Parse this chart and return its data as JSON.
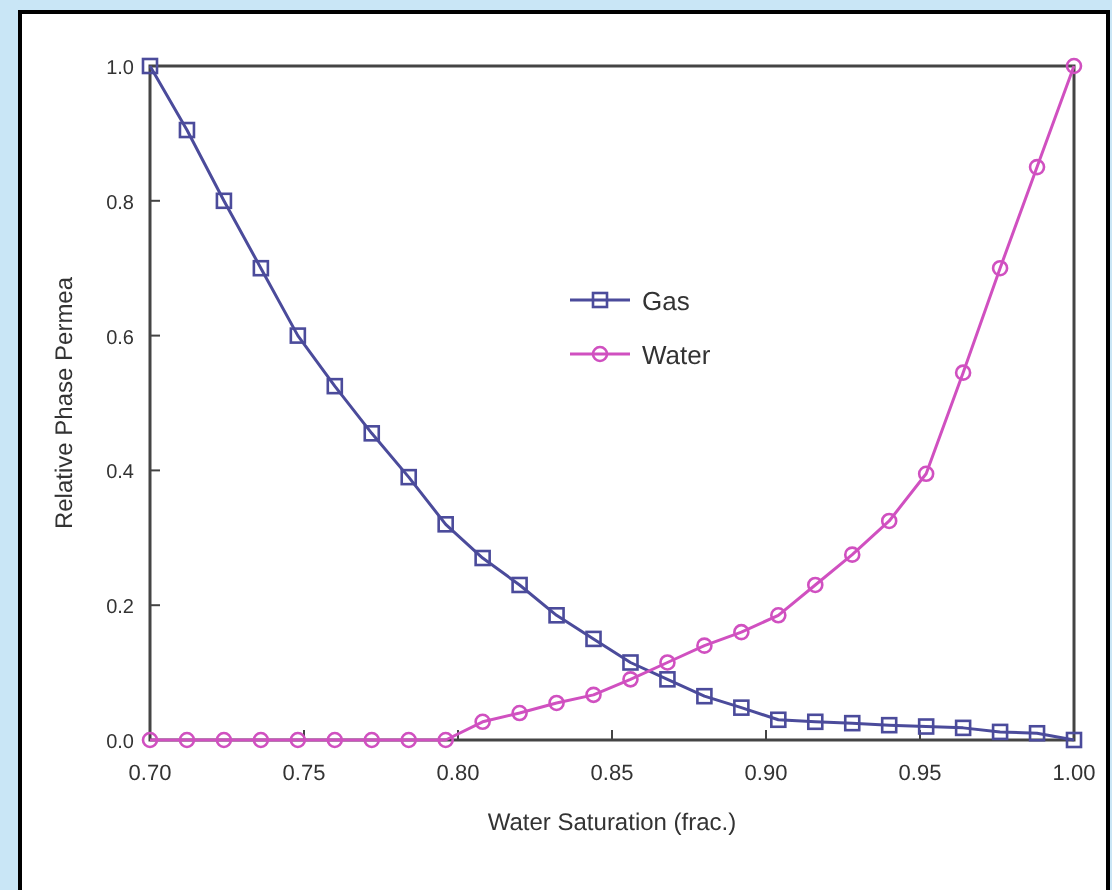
{
  "chart_data": {
    "type": "line",
    "xlabel": "Water Saturation (frac.)",
    "ylabel": "Relative Phase Permea",
    "x": [
      0.7,
      0.712,
      0.724,
      0.736,
      0.748,
      0.76,
      0.772,
      0.784,
      0.796,
      0.808,
      0.82,
      0.832,
      0.844,
      0.856,
      0.868,
      0.88,
      0.892,
      0.904,
      0.916,
      0.928,
      0.94,
      0.952,
      0.964,
      0.976,
      0.988,
      1.0
    ],
    "series": [
      {
        "name": "Gas",
        "color": "#4b4b9b",
        "marker": "square",
        "values": [
          1.0,
          0.905,
          0.8,
          0.7,
          0.6,
          0.525,
          0.455,
          0.39,
          0.32,
          0.27,
          0.23,
          0.185,
          0.15,
          0.115,
          0.09,
          0.065,
          0.048,
          0.03,
          0.027,
          0.025,
          0.022,
          0.02,
          0.018,
          0.012,
          0.01,
          0.0
        ]
      },
      {
        "name": "Water",
        "color": "#d050c0",
        "marker": "circle",
        "values": [
          0,
          0,
          0,
          0,
          0,
          0,
          0,
          0,
          0,
          0.027,
          0.04,
          0.055,
          0.067,
          0.09,
          0.115,
          0.14,
          0.16,
          0.185,
          0.23,
          0.275,
          0.325,
          0.395,
          0.545,
          0.7,
          0.85,
          1.0
        ]
      }
    ],
    "xlim": [
      0.7,
      1.0
    ],
    "xticks": [
      {
        "value": 0.7,
        "label": "0.70"
      },
      {
        "value": 0.75,
        "label": "0.75"
      },
      {
        "value": 0.8,
        "label": "0.80"
      },
      {
        "value": 0.85,
        "label": "0.85"
      },
      {
        "value": 0.9,
        "label": "0.90"
      },
      {
        "value": 0.95,
        "label": "0.95"
      },
      {
        "value": 1.0,
        "label": "1.00"
      }
    ],
    "ylim": [
      0,
      1
    ],
    "yticks": [
      {
        "value": 0,
        "label": "0.0"
      },
      {
        "value": 0.2,
        "label": "0.2"
      },
      {
        "value": 0.4,
        "label": "0.4"
      },
      {
        "value": 0.6,
        "label": "0.6"
      },
      {
        "value": 0.8,
        "label": "0.8"
      },
      {
        "value": 1,
        "label": "1.0"
      }
    ],
    "grid": false,
    "legend": "center",
    "line_style": "solid"
  }
}
